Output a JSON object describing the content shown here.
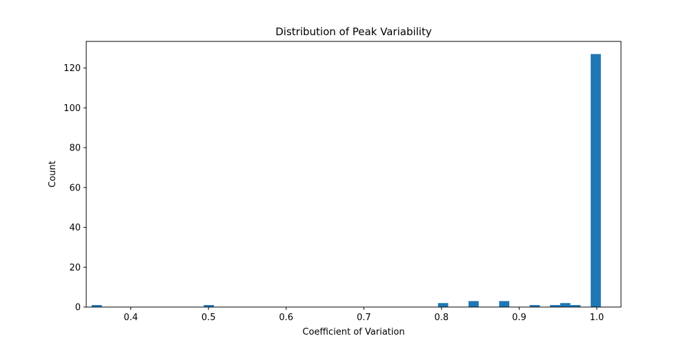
{
  "chart_data": {
    "type": "bar",
    "title": "Distribution of Peak Variability",
    "xlabel": "Coefficient of Variation",
    "ylabel": "Count",
    "xlim": [
      0.3426,
      1.0311
    ],
    "ylim": [
      0,
      133.35
    ],
    "bin_width": 0.0131,
    "xticks": [
      0.4,
      0.5,
      0.6,
      0.7,
      0.8,
      0.9,
      1.0
    ],
    "xtick_labels": [
      "0.4",
      "0.5",
      "0.6",
      "0.7",
      "0.8",
      "0.9",
      "1.0"
    ],
    "yticks": [
      0,
      20,
      40,
      60,
      80,
      100,
      120
    ],
    "ytick_labels": [
      "0",
      "20",
      "40",
      "60",
      "80",
      "100",
      "120"
    ],
    "grid": false,
    "bar_color": "#1f77b4",
    "bins": [
      {
        "x": 0.3496,
        "count": 1
      },
      {
        "x": 0.4939,
        "count": 1
      },
      {
        "x": 0.7955,
        "count": 2
      },
      {
        "x": 0.8348,
        "count": 3
      },
      {
        "x": 0.8742,
        "count": 3
      },
      {
        "x": 0.9135,
        "count": 1
      },
      {
        "x": 0.9397,
        "count": 1
      },
      {
        "x": 0.9528,
        "count": 2
      },
      {
        "x": 0.9659,
        "count": 1
      },
      {
        "x": 0.9921,
        "count": 127
      }
    ]
  }
}
